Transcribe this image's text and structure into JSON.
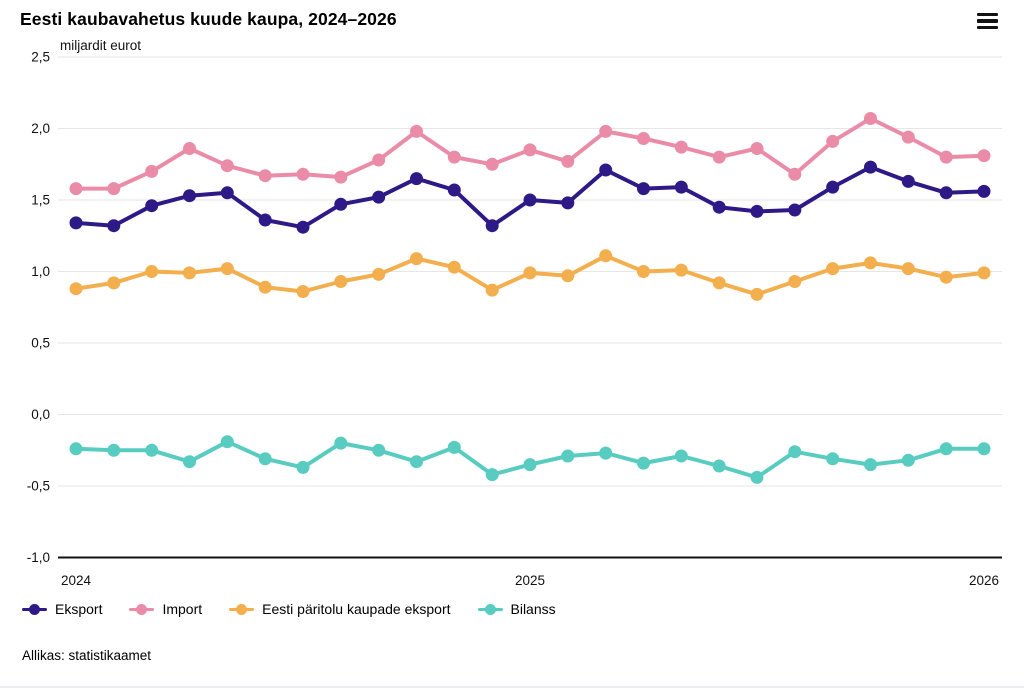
{
  "header": {
    "title": "Eesti kaubavahetus kuude kaupa, 2024–2026"
  },
  "source": "Allikas: statistikaamet",
  "chart_data": {
    "type": "line",
    "title": "Eesti kaubavahetus kuude kaupa, 2024–2026",
    "ylabel": "miljardit eurot",
    "xlabel": "",
    "grid": true,
    "legend_position": "bottom",
    "ylim": [
      -1.0,
      2.5
    ],
    "y_ticks": [
      {
        "v": 2.5,
        "label": "2,5"
      },
      {
        "v": 2.0,
        "label": "2,0"
      },
      {
        "v": 1.5,
        "label": "1,5"
      },
      {
        "v": 1.0,
        "label": "1,0"
      },
      {
        "v": 0.5,
        "label": "0,5"
      },
      {
        "v": 0.0,
        "label": "0,0"
      },
      {
        "v": -0.5,
        "label": "-0,5"
      },
      {
        "v": -1.0,
        "label": "-1,0"
      }
    ],
    "x": [
      "2024-01",
      "2024-02",
      "2024-03",
      "2024-04",
      "2024-05",
      "2024-06",
      "2024-07",
      "2024-08",
      "2024-09",
      "2024-10",
      "2024-11",
      "2024-12",
      "2025-01",
      "2025-02",
      "2025-03",
      "2025-04",
      "2025-05",
      "2025-06",
      "2025-07",
      "2025-08",
      "2025-09",
      "2025-10",
      "2025-11",
      "2025-12",
      "2026-01"
    ],
    "x_axis_labels": [
      {
        "index": 0,
        "label": "2024"
      },
      {
        "index": 12,
        "label": "2025"
      },
      {
        "index": 24,
        "label": "2026"
      }
    ],
    "series": [
      {
        "name": "Eksport",
        "color": "#2E1A86",
        "values": [
          1.34,
          1.32,
          1.46,
          1.53,
          1.55,
          1.36,
          1.31,
          1.47,
          1.52,
          1.65,
          1.57,
          1.32,
          1.5,
          1.48,
          1.71,
          1.58,
          1.59,
          1.45,
          1.42,
          1.43,
          1.59,
          1.73,
          1.63,
          1.55,
          1.56
        ]
      },
      {
        "name": "Import",
        "color": "#EA8CA7",
        "values": [
          1.58,
          1.58,
          1.7,
          1.86,
          1.74,
          1.67,
          1.68,
          1.66,
          1.78,
          1.98,
          1.8,
          1.75,
          1.85,
          1.77,
          1.98,
          1.93,
          1.87,
          1.8,
          1.86,
          1.68,
          1.91,
          2.07,
          1.94,
          1.8,
          1.81
        ]
      },
      {
        "name": "Eesti päritolu kaupade eksport",
        "color": "#F3AE4D",
        "values": [
          0.88,
          0.92,
          1.0,
          0.99,
          1.02,
          0.89,
          0.86,
          0.93,
          0.98,
          1.09,
          1.03,
          0.87,
          0.99,
          0.97,
          1.11,
          1.0,
          1.01,
          0.92,
          0.84,
          0.93,
          1.02,
          1.06,
          1.02,
          0.96,
          0.99
        ]
      },
      {
        "name": "Bilanss",
        "color": "#58CCC1",
        "values": [
          -0.24,
          -0.25,
          -0.25,
          -0.33,
          -0.19,
          -0.31,
          -0.37,
          -0.2,
          -0.25,
          -0.33,
          -0.23,
          -0.42,
          -0.35,
          -0.29,
          -0.27,
          -0.34,
          -0.29,
          -0.36,
          -0.44,
          -0.26,
          -0.31,
          -0.35,
          -0.32,
          -0.24,
          -0.24
        ]
      }
    ],
    "style": {
      "grid_color": "#E6E6E6",
      "axis_color": "#111111",
      "text_color": "#111111"
    }
  }
}
